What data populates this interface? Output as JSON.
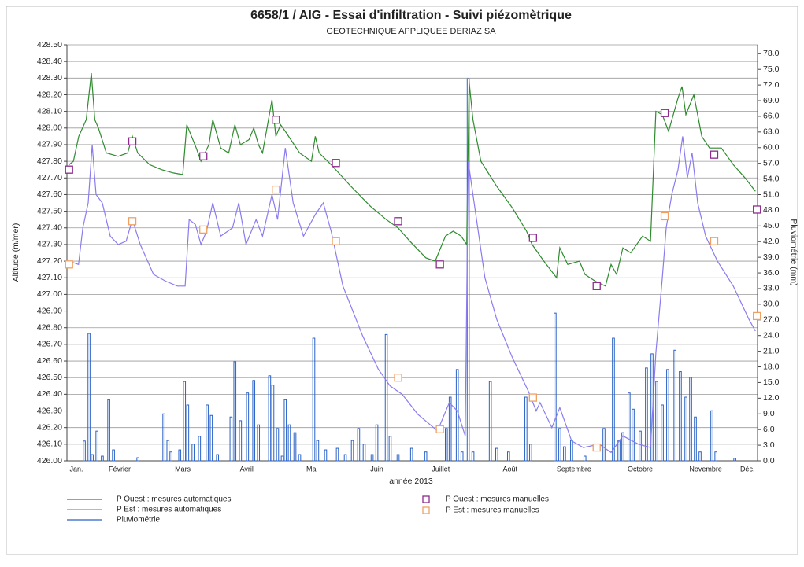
{
  "chart_data": {
    "type": "line",
    "title": "6658/1 / AIG - Essai d'infiltration - Suivi piézomètrique",
    "subtitle": "GEOTECHNIQUE APPLIQUEE DERIAZ SA",
    "xlabel": "année 2013",
    "ylabel": "Altitude (m/mer)",
    "y2label": "Pluviométrie (mm)",
    "xlim": [
      23,
      345
    ],
    "xticks": [
      {
        "value": 27.4,
        "label": "Jan."
      },
      {
        "value": 47.6,
        "label": "Février"
      },
      {
        "value": 77,
        "label": "Mars"
      },
      {
        "value": 106.8,
        "label": "Avril"
      },
      {
        "value": 137.3,
        "label": "Mai"
      },
      {
        "value": 167.5,
        "label": "Juin"
      },
      {
        "value": 197.3,
        "label": "Juillet"
      },
      {
        "value": 229.6,
        "label": "Août"
      },
      {
        "value": 259.4,
        "label": "Septembre"
      },
      {
        "value": 290.3,
        "label": "Octobre"
      },
      {
        "value": 320.8,
        "label": "Novembre"
      },
      {
        "value": 340.3,
        "label": "Déc."
      }
    ],
    "ylim": [
      426,
      428.5
    ],
    "yticks": [
      {
        "value": 426,
        "label": "426.00"
      },
      {
        "value": 426.1,
        "label": "426.10"
      },
      {
        "value": 426.2,
        "label": "426.20"
      },
      {
        "value": 426.3,
        "label": "426.30"
      },
      {
        "value": 426.4,
        "label": "426.40"
      },
      {
        "value": 426.5,
        "label": "426.50"
      },
      {
        "value": 426.6,
        "label": "426.60"
      },
      {
        "value": 426.7,
        "label": "426.70"
      },
      {
        "value": 426.8,
        "label": "426.80"
      },
      {
        "value": 426.9,
        "label": "426.90"
      },
      {
        "value": 427,
        "label": "427.00"
      },
      {
        "value": 427.1,
        "label": "427.10"
      },
      {
        "value": 427.2,
        "label": "427.20"
      },
      {
        "value": 427.3,
        "label": "427.30"
      },
      {
        "value": 427.4,
        "label": "427.40"
      },
      {
        "value": 427.5,
        "label": "427.50"
      },
      {
        "value": 427.6,
        "label": "427.60"
      },
      {
        "value": 427.7,
        "label": "427.70"
      },
      {
        "value": 427.8,
        "label": "427.80"
      },
      {
        "value": 427.9,
        "label": "427.90"
      },
      {
        "value": 428,
        "label": "428.00"
      },
      {
        "value": 428.1,
        "label": "428.10"
      },
      {
        "value": 428.2,
        "label": "428.20"
      },
      {
        "value": 428.3,
        "label": "428.30"
      },
      {
        "value": 428.4,
        "label": "428.40"
      },
      {
        "value": 428.5,
        "label": "428.50"
      }
    ],
    "y2lim": [
      0,
      79.7
    ],
    "y2ticks": [
      {
        "value": 0,
        "label": "0.0"
      },
      {
        "value": 3,
        "label": "3.0"
      },
      {
        "value": 6,
        "label": "6.0"
      },
      {
        "value": 9,
        "label": "9.0"
      },
      {
        "value": 12,
        "label": "12.0"
      },
      {
        "value": 15,
        "label": "15.0"
      },
      {
        "value": 18,
        "label": "18.0"
      },
      {
        "value": 21,
        "label": "21.0"
      },
      {
        "value": 24,
        "label": "24.0"
      },
      {
        "value": 27,
        "label": "27.0"
      },
      {
        "value": 30,
        "label": "30.0"
      },
      {
        "value": 33,
        "label": "33.0"
      },
      {
        "value": 36,
        "label": "36.0"
      },
      {
        "value": 39,
        "label": "39.0"
      },
      {
        "value": 42,
        "label": "42.0"
      },
      {
        "value": 45,
        "label": "45.0"
      },
      {
        "value": 48,
        "label": "48.0"
      },
      {
        "value": 51,
        "label": "51.0"
      },
      {
        "value": 54,
        "label": "54.0"
      },
      {
        "value": 57,
        "label": "57.0"
      },
      {
        "value": 60,
        "label": "60.0"
      },
      {
        "value": 63,
        "label": "63.0"
      },
      {
        "value": 66,
        "label": "66.0"
      },
      {
        "value": 69,
        "label": "69.0"
      },
      {
        "value": 72,
        "label": "72.0"
      },
      {
        "value": 75,
        "label": "75.0"
      },
      {
        "value": 78,
        "label": "78.0"
      }
    ],
    "grid": true,
    "legend": "bottom",
    "series": [
      {
        "name": "P Ouest : mesures automatiques",
        "type": "line",
        "axis": "y",
        "color": "#2e8b2e",
        "x": [
          24,
          26,
          28.5,
          32,
          34.4,
          36,
          37.7,
          41.4,
          46.9,
          51.3,
          53.5,
          56,
          61.6,
          67.1,
          72.6,
          77,
          78.9,
          83.3,
          85.5,
          89.2,
          91,
          94.7,
          98.4,
          101.3,
          103.9,
          107.9,
          110.1,
          112.3,
          114.2,
          118.6,
          120.4,
          122.6,
          124.8,
          131.5,
          137,
          138.8,
          140.6,
          146.2,
          155.4,
          164.5,
          171.9,
          177.4,
          182.9,
          190.3,
          194.7,
          199.5,
          203.1,
          206.8,
          209.4,
          210.5,
          212.3,
          216,
          223.4,
          230.7,
          237.3,
          239.9,
          245.4,
          251.3,
          252.8,
          256.5,
          262,
          264.5,
          269.3,
          274.1,
          276.7,
          279.3,
          282.2,
          285.9,
          291.4,
          295.1,
          297.6,
          300.6,
          303.5,
          307.9,
          309.8,
          311.6,
          315.3,
          319,
          322.6,
          328.1,
          333.7,
          339.2,
          344
        ],
        "values": [
          427.78,
          427.8,
          427.95,
          428.05,
          428.33,
          428.05,
          428,
          427.85,
          427.83,
          427.85,
          427.95,
          427.85,
          427.78,
          427.75,
          427.73,
          427.72,
          428.02,
          427.88,
          427.8,
          427.9,
          428.05,
          427.88,
          427.85,
          428.02,
          427.9,
          427.93,
          428,
          427.9,
          427.85,
          428.17,
          427.95,
          428.02,
          427.98,
          427.85,
          427.8,
          427.95,
          427.85,
          427.78,
          427.65,
          427.53,
          427.45,
          427.4,
          427.32,
          427.22,
          427.2,
          427.35,
          427.38,
          427.35,
          427.3,
          428.28,
          428.05,
          427.8,
          427.65,
          427.52,
          427.38,
          427.3,
          427.2,
          427.1,
          427.28,
          427.18,
          427.2,
          427.12,
          427.08,
          427.05,
          427.18,
          427.12,
          427.28,
          427.25,
          427.35,
          427.32,
          428.1,
          428.08,
          427.98,
          428.18,
          428.25,
          428.08,
          428.2,
          427.95,
          427.88,
          427.88,
          427.78,
          427.7,
          427.62
        ]
      },
      {
        "name": "P Est : mesures automatiques",
        "type": "line",
        "axis": "y",
        "color": "#8a7cf0",
        "x": [
          24,
          28.4,
          30.4,
          32.9,
          34.8,
          36.6,
          39.5,
          43.2,
          46.9,
          50.6,
          53.5,
          57.2,
          63.4,
          69,
          74.5,
          78.1,
          80,
          82.9,
          85.5,
          88.1,
          91,
          94.7,
          100.2,
          103.1,
          106.5,
          111.2,
          114.2,
          118.6,
          121.2,
          124.8,
          128.5,
          133.3,
          138.8,
          142.5,
          146.2,
          151.7,
          160.9,
          168.2,
          173.7,
          179.3,
          186.6,
          195.8,
          201.3,
          205,
          208.7,
          210.1,
          212.3,
          217.9,
          223.4,
          230.7,
          238.1,
          241.8,
          243.6,
          249.1,
          252.8,
          258.3,
          263.8,
          271.2,
          276.7,
          282.2,
          289.5,
          295.1,
          297.6,
          300.6,
          302.4,
          305,
          307.9,
          310.1,
          312.3,
          314.5,
          317.1,
          320.8,
          326.3,
          333.7,
          341,
          344
        ],
        "values": [
          427.2,
          427.18,
          427.4,
          427.55,
          427.9,
          427.6,
          427.55,
          427.35,
          427.3,
          427.32,
          427.45,
          427.3,
          427.12,
          427.08,
          427.05,
          427.05,
          427.45,
          427.42,
          427.3,
          427.38,
          427.55,
          427.35,
          427.4,
          427.55,
          427.3,
          427.45,
          427.35,
          427.6,
          427.45,
          427.88,
          427.55,
          427.35,
          427.48,
          427.55,
          427.38,
          427.05,
          426.75,
          426.55,
          426.45,
          426.4,
          426.28,
          426.18,
          426.35,
          426.3,
          426.15,
          427.8,
          427.6,
          427.1,
          426.85,
          426.62,
          426.42,
          426.3,
          426.35,
          426.2,
          426.32,
          426.12,
          426.08,
          426.1,
          426.05,
          426.15,
          426.1,
          426.08,
          426.65,
          427.1,
          427.4,
          427.6,
          427.75,
          427.95,
          427.7,
          427.85,
          427.55,
          427.35,
          427.2,
          427.05,
          426.85,
          426.78
        ]
      },
      {
        "name": "Pluviométrie",
        "type": "bar",
        "axis": "y2",
        "color": "#2a62c6",
        "x": [
          31.1,
          33.3,
          34.8,
          37,
          39.5,
          42.5,
          44.7,
          56.1,
          68.2,
          70.1,
          71.5,
          75.6,
          77.8,
          79.3,
          81.8,
          84.8,
          88.4,
          90.3,
          93.2,
          99.5,
          101.3,
          103.9,
          107.2,
          110.1,
          112.3,
          117.5,
          119,
          121.2,
          123.4,
          124.8,
          126.7,
          129.3,
          131.5,
          138.1,
          139.9,
          143.6,
          149.1,
          152.8,
          156.1,
          159,
          161.6,
          165.3,
          167.5,
          171.9,
          173.7,
          177.4,
          183.7,
          190.3,
          199.9,
          201.7,
          205,
          207.2,
          210.1,
          212.3,
          220.4,
          223.4,
          228.9,
          237,
          239.2,
          250.6,
          252.8,
          255,
          258.3,
          264.5,
          273.4,
          277.8,
          280.4,
          282.2,
          285.1,
          287,
          290.3,
          293.2,
          295.8,
          298,
          300.6,
          303.1,
          306.5,
          309,
          311.6,
          313.8,
          316,
          318.2,
          323.7,
          325.6,
          334.4
        ],
        "values": [
          3.8,
          24.4,
          1.2,
          5.7,
          0.9,
          11.7,
          2.1,
          0.6,
          9,
          3.9,
          1.7,
          2.1,
          15.2,
          10.7,
          3.2,
          4.7,
          10.7,
          8.7,
          1.2,
          8.4,
          19,
          7.7,
          13,
          15.4,
          6.9,
          16.3,
          14.5,
          6.2,
          0.9,
          11.7,
          6.9,
          5.4,
          1.2,
          23.5,
          3.9,
          2.1,
          2.4,
          1.2,
          3.9,
          6.2,
          3.2,
          1.2,
          6.9,
          24.2,
          4.7,
          1.2,
          2.4,
          1.7,
          6.2,
          12.2,
          17.5,
          1.7,
          73.2,
          1.7,
          15.2,
          2.4,
          1.7,
          12.2,
          3.2,
          28.3,
          6.2,
          2.7,
          3.9,
          0.9,
          6.2,
          23.5,
          3.9,
          5.4,
          13,
          9.9,
          5.7,
          17.8,
          20.5,
          15.2,
          10.7,
          17.5,
          21.2,
          17.1,
          12.2,
          16,
          8.4,
          1.7,
          9.6,
          1.7,
          0.5
        ]
      },
      {
        "name": "P Ouest : mesures manuelles",
        "type": "scatter",
        "marker": "square",
        "axis": "y",
        "color": "#8e2a8e",
        "x": [
          24,
          53.5,
          86.6,
          120.4,
          148.4,
          177.4,
          196.9,
          240.3,
          270,
          301.7,
          324.8,
          344.7
        ],
        "values": [
          427.75,
          427.92,
          427.83,
          428.05,
          427.79,
          427.44,
          427.18,
          427.34,
          427.05,
          428.09,
          427.84,
          427.51
        ]
      },
      {
        "name": "P Est : mesures manuelles",
        "type": "scatter",
        "marker": "square",
        "axis": "y",
        "color": "#f0a060",
        "x": [
          24,
          53.5,
          86.6,
          120.4,
          148.4,
          177.4,
          196.9,
          240.3,
          270,
          301.7,
          324.8,
          344.7
        ],
        "values": [
          427.18,
          427.44,
          427.39,
          427.63,
          427.32,
          426.5,
          426.19,
          426.38,
          426.08,
          427.47,
          427.32,
          426.87
        ]
      }
    ]
  }
}
